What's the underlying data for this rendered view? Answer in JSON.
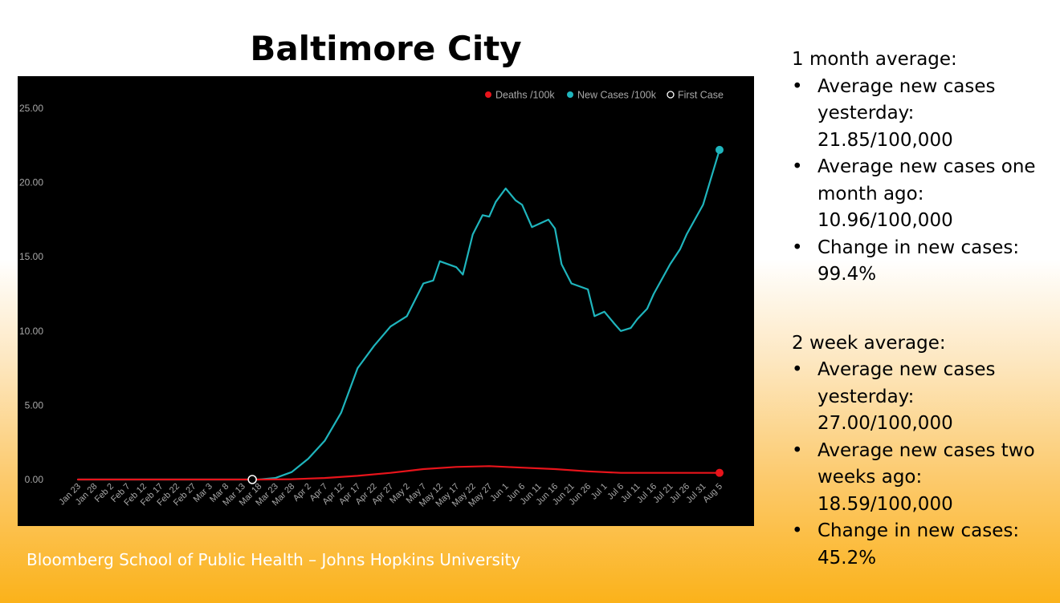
{
  "title": "Baltimore City",
  "footer": "Bloomberg School of Public Health – Johns Hopkins University",
  "stats": {
    "month": {
      "heading": "1 month average:",
      "items": [
        "Average new cases yesterday: 21.85/100,000",
        "Average new cases one month ago: 10.96/100,000",
        "Change in new cases: 99.4%"
      ]
    },
    "two_week": {
      "heading": "2 week average:",
      "items": [
        "Average new cases yesterday: 27.00/100,000",
        "Average new cases two weeks ago: 18.59/100,000",
        "Change in new cases: 45.2%"
      ]
    }
  },
  "chart_data": {
    "type": "line",
    "title": "",
    "xlabel": "",
    "ylabel": "",
    "ylim": [
      0,
      25
    ],
    "y_ticks": [
      "0.00",
      "5.00",
      "10.00",
      "15.00",
      "20.00",
      "25.00"
    ],
    "x_tick_labels": [
      "Jan 23",
      "Jan 28",
      "Feb 2",
      "Feb 7",
      "Feb 12",
      "Feb 17",
      "Feb 22",
      "Feb 27",
      "Mar 3",
      "Mar 8",
      "Mar 13",
      "Mar 18",
      "Mar 23",
      "Mar 28",
      "Apr 2",
      "Apr 7",
      "Apr 12",
      "Apr 17",
      "Apr 22",
      "Apr 27",
      "May 2",
      "May 7",
      "May 12",
      "May 17",
      "May 22",
      "May 27",
      "Jun 1",
      "Jun 6",
      "Jun 11",
      "Jun 16",
      "Jun 21",
      "Jun 26",
      "Jul 1",
      "Jul 6",
      "Jul 11",
      "Jul 16",
      "Jul 21",
      "Jul 26",
      "Jul 31",
      "Aug 5"
    ],
    "x_start": "Jan 23",
    "x_end": "Aug 5",
    "grid": false,
    "legend_position": "top-right",
    "legend": [
      {
        "label": "Deaths /100k",
        "color": "#e8141b",
        "marker": "filled"
      },
      {
        "label": "New Cases /100k",
        "color": "#1fb5bd",
        "marker": "filled"
      },
      {
        "label": "First Case",
        "color": "#ffffff",
        "marker": "hollow"
      }
    ],
    "series": [
      {
        "name": "New Cases /100k",
        "color": "#1fb5bd",
        "x": [
          "Jan 23",
          "Mar 13",
          "Mar 18",
          "Mar 23",
          "Mar 28",
          "Apr 2",
          "Apr 7",
          "Apr 12",
          "Apr 17",
          "Apr 22",
          "Apr 27",
          "May 2",
          "May 7",
          "May 10",
          "May 12",
          "May 17",
          "May 19",
          "May 22",
          "May 25",
          "May 27",
          "May 29",
          "Jun 1",
          "Jun 4",
          "Jun 6",
          "Jun 9",
          "Jun 11",
          "Jun 14",
          "Jun 16",
          "Jun 18",
          "Jun 21",
          "Jun 26",
          "Jun 28",
          "Jul 1",
          "Jul 4",
          "Jul 6",
          "Jul 9",
          "Jul 11",
          "Jul 14",
          "Jul 16",
          "Jul 21",
          "Jul 24",
          "Jul 26",
          "Jul 31",
          "Aug 5"
        ],
        "values": [
          0.0,
          0.0,
          0.0,
          0.1,
          0.5,
          1.4,
          2.6,
          4.5,
          7.5,
          9.0,
          10.3,
          11.0,
          13.2,
          13.4,
          14.7,
          14.3,
          13.8,
          16.5,
          17.8,
          17.7,
          18.7,
          19.6,
          18.8,
          18.5,
          17.0,
          17.2,
          17.5,
          16.9,
          14.5,
          13.2,
          12.8,
          11.0,
          11.3,
          10.5,
          10.0,
          10.2,
          10.8,
          11.5,
          12.5,
          14.5,
          15.5,
          16.5,
          18.5,
          22.2
        ]
      },
      {
        "name": "Deaths /100k",
        "color": "#e8141b",
        "x": [
          "Jan 23",
          "Mar 18",
          "Mar 28",
          "Apr 7",
          "Apr 17",
          "Apr 27",
          "May 7",
          "May 17",
          "May 27",
          "Jun 6",
          "Jun 16",
          "Jun 26",
          "Jul 6",
          "Jul 16",
          "Jul 26",
          "Aug 5"
        ],
        "values": [
          0.0,
          0.0,
          0.02,
          0.1,
          0.25,
          0.45,
          0.7,
          0.85,
          0.9,
          0.8,
          0.7,
          0.55,
          0.45,
          0.45,
          0.45,
          0.45
        ]
      }
    ],
    "first_case": {
      "label": "First Case",
      "x": "Mar 16",
      "value": 0.0
    }
  }
}
